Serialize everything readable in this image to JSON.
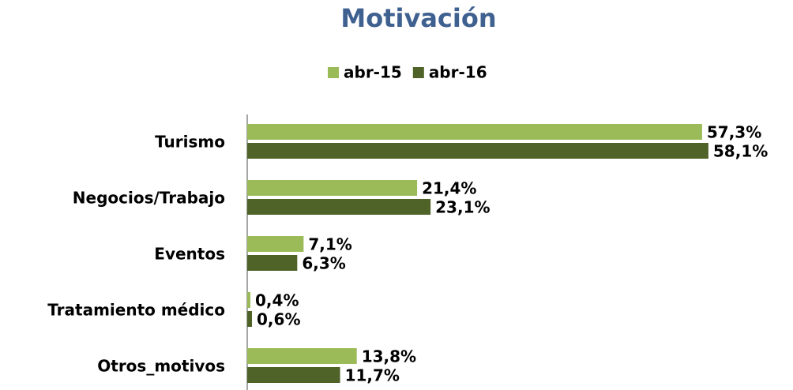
{
  "chart_data": {
    "type": "barh",
    "title": "Motivación",
    "categories": [
      "Turismo",
      "Negocios/Trabajo",
      "Eventos",
      "Tratamiento médico",
      "Otros_motivos"
    ],
    "series": [
      {
        "name": "abr-15",
        "color": "#9bbb59",
        "values": [
          57.3,
          21.4,
          7.1,
          0.4,
          13.8
        ],
        "value_labels": [
          "57,3%",
          "21,4%",
          "7,1%",
          "0,4%",
          "13,8%"
        ]
      },
      {
        "name": "abr-16",
        "color": "#4f6228",
        "values": [
          58.1,
          23.1,
          6.3,
          0.6,
          11.7
        ],
        "value_labels": [
          "58,1%",
          "23,1%",
          "6,3%",
          "0,6%",
          "11,7%"
        ]
      }
    ],
    "xlim": [
      0,
      60
    ],
    "legend": "top"
  }
}
